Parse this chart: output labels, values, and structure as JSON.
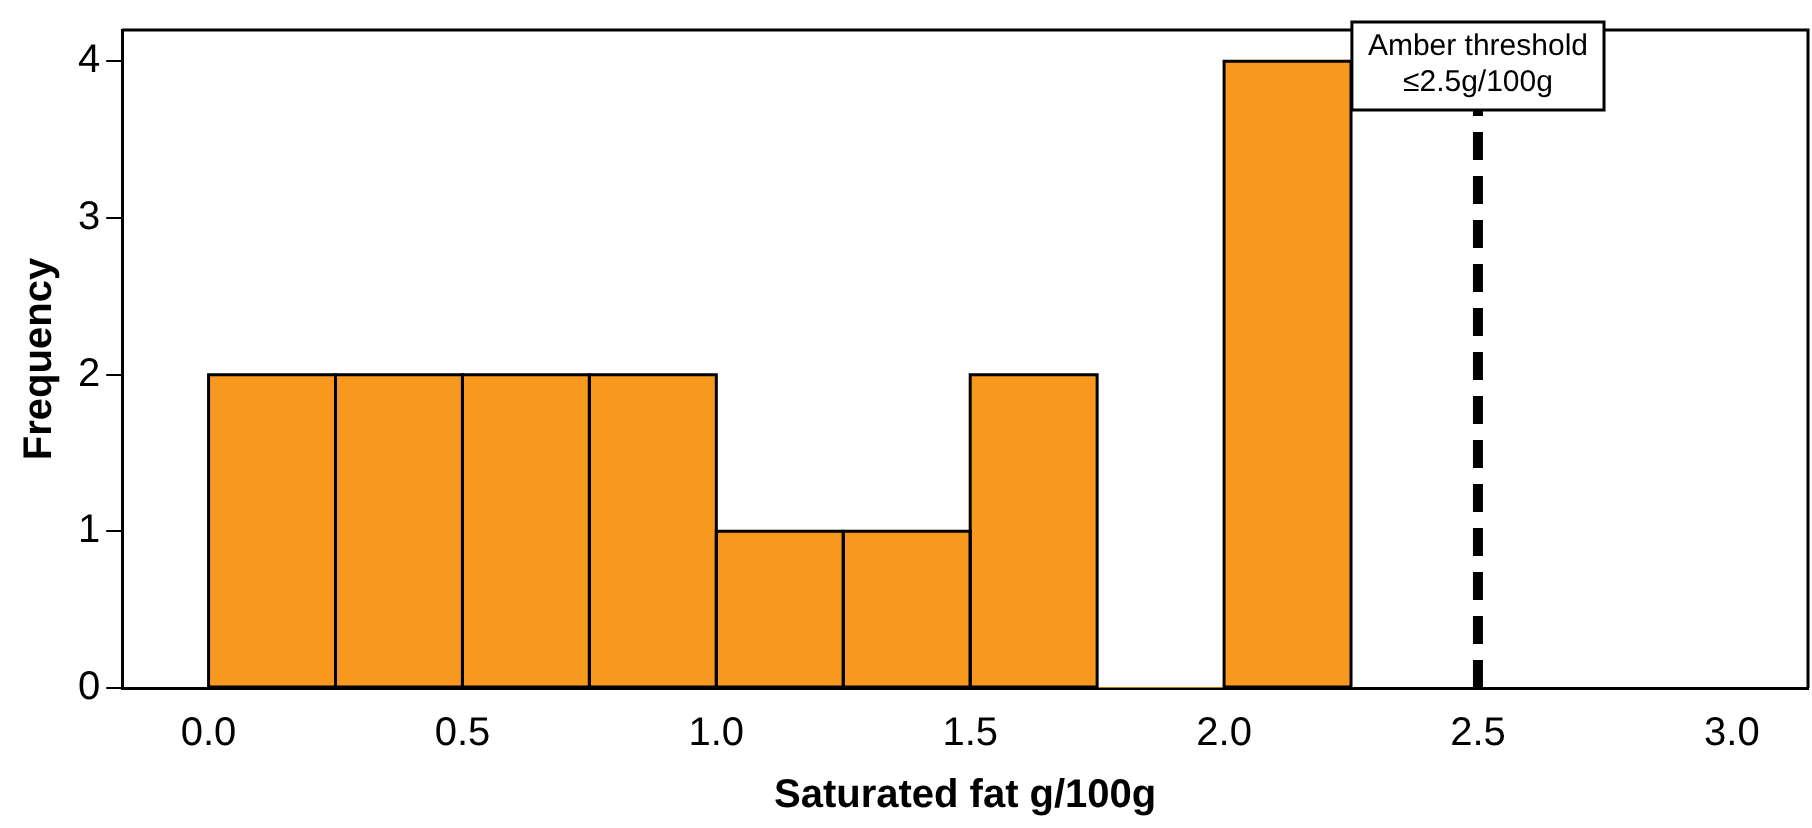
{
  "chart_data": {
    "type": "histogram",
    "xlabel": "Saturated fat g/100g",
    "ylabel": "Frequency",
    "bins": [
      0,
      0.25,
      0.5,
      0.75,
      1.0,
      1.25,
      1.5,
      1.75,
      2.0,
      2.25
    ],
    "values": [
      2,
      2,
      2,
      2,
      1,
      1,
      2,
      0,
      4
    ],
    "color": "#f7991f",
    "xlim": [
      -0.17,
      3.15
    ],
    "xticks": [
      {
        "value": 0,
        "label": "0.0"
      },
      {
        "value": 0.5,
        "label": "0.5"
      },
      {
        "value": 1,
        "label": "1.0"
      },
      {
        "value": 1.5,
        "label": "1.5"
      },
      {
        "value": 2,
        "label": "2.0"
      },
      {
        "value": 2.5,
        "label": "2.5"
      },
      {
        "value": 3,
        "label": "3.0"
      }
    ],
    "ylim": [
      0,
      4.2
    ],
    "yticks": [
      0,
      1,
      2,
      3,
      4
    ],
    "grid": false,
    "legend": false,
    "ref_lines": [
      {
        "axis": "x",
        "value": 2.5,
        "label": "Amber threshold\n≤2.5g/100g",
        "color": "#000000",
        "line_style": "dashed"
      }
    ]
  }
}
